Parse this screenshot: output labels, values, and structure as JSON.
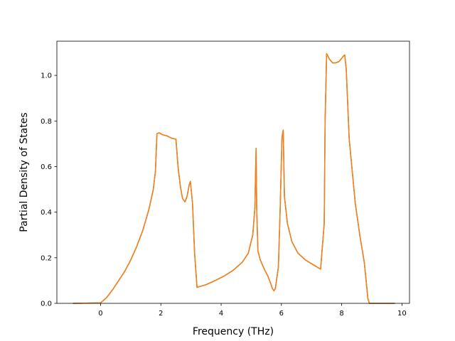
{
  "chart_data": {
    "type": "line",
    "title": "",
    "xlabel": "Frequency (THz)",
    "ylabel": "Partial Density of States",
    "xlim": [
      -1.45,
      10.25
    ],
    "ylim": [
      0.0,
      1.15
    ],
    "grid": false,
    "legend": "none",
    "x_ticks": [
      0,
      2,
      4,
      6,
      8,
      10
    ],
    "y_ticks": [
      0.0,
      0.2,
      0.4,
      0.6,
      0.8,
      1.0
    ],
    "x_tick_labels": [
      "0",
      "2",
      "4",
      "6",
      "8",
      "10"
    ],
    "y_tick_labels": [
      "0.0",
      "0.2",
      "0.4",
      "0.6",
      "0.8",
      "1.0"
    ],
    "series": [
      {
        "color": "#1f77b4",
        "x": [
          -0.9,
          0.0,
          0.2,
          0.4,
          0.6,
          0.8,
          1.0,
          1.2,
          1.4,
          1.6,
          1.75,
          1.82,
          1.87,
          1.95,
          2.05,
          2.2,
          2.35,
          2.5,
          2.57,
          2.65,
          2.72,
          2.8,
          2.87,
          2.94,
          2.98,
          3.05,
          3.12,
          3.2,
          3.5,
          3.8,
          4.1,
          4.4,
          4.7,
          4.9,
          5.05,
          5.12,
          5.16,
          5.18,
          5.22,
          5.3,
          5.45,
          5.55,
          5.65,
          5.7,
          5.75,
          5.8,
          5.9,
          5.96,
          6.02,
          6.06,
          6.1,
          6.2,
          6.35,
          6.55,
          6.8,
          7.05,
          7.3,
          7.42,
          7.45,
          7.5,
          7.6,
          7.7,
          7.8,
          7.9,
          8.0,
          8.06,
          8.1,
          8.15,
          8.25,
          8.45,
          8.6,
          8.75,
          8.87,
          8.92,
          9.3,
          9.75
        ],
        "y": [
          0.0,
          0.002,
          0.025,
          0.06,
          0.1,
          0.14,
          0.19,
          0.25,
          0.32,
          0.41,
          0.5,
          0.58,
          0.745,
          0.748,
          0.74,
          0.735,
          0.725,
          0.72,
          0.6,
          0.51,
          0.46,
          0.445,
          0.47,
          0.52,
          0.535,
          0.44,
          0.22,
          0.07,
          0.082,
          0.1,
          0.12,
          0.145,
          0.18,
          0.22,
          0.3,
          0.42,
          0.68,
          0.42,
          0.23,
          0.19,
          0.145,
          0.12,
          0.085,
          0.065,
          0.055,
          0.065,
          0.16,
          0.42,
          0.73,
          0.76,
          0.47,
          0.35,
          0.27,
          0.22,
          0.19,
          0.17,
          0.15,
          0.35,
          0.8,
          1.095,
          1.07,
          1.055,
          1.055,
          1.06,
          1.075,
          1.085,
          1.09,
          1.03,
          0.72,
          0.44,
          0.3,
          0.18,
          0.02,
          0.0,
          0.0,
          0.0
        ]
      },
      {
        "color": "#ff7f0e",
        "x": [
          -0.9,
          0.0,
          0.2,
          0.4,
          0.6,
          0.8,
          1.0,
          1.2,
          1.4,
          1.6,
          1.75,
          1.82,
          1.87,
          1.95,
          2.05,
          2.2,
          2.35,
          2.5,
          2.57,
          2.65,
          2.72,
          2.8,
          2.87,
          2.94,
          2.98,
          3.05,
          3.12,
          3.2,
          3.5,
          3.8,
          4.1,
          4.4,
          4.7,
          4.9,
          5.05,
          5.12,
          5.16,
          5.18,
          5.22,
          5.3,
          5.45,
          5.55,
          5.65,
          5.7,
          5.75,
          5.8,
          5.9,
          5.96,
          6.02,
          6.06,
          6.1,
          6.2,
          6.35,
          6.55,
          6.8,
          7.05,
          7.3,
          7.42,
          7.45,
          7.5,
          7.6,
          7.7,
          7.8,
          7.9,
          8.0,
          8.06,
          8.1,
          8.15,
          8.25,
          8.45,
          8.6,
          8.75,
          8.87,
          8.92,
          9.3,
          9.75
        ],
        "y": [
          0.0,
          0.002,
          0.025,
          0.06,
          0.1,
          0.14,
          0.19,
          0.25,
          0.32,
          0.41,
          0.5,
          0.58,
          0.745,
          0.748,
          0.74,
          0.735,
          0.725,
          0.72,
          0.6,
          0.51,
          0.46,
          0.445,
          0.47,
          0.52,
          0.535,
          0.44,
          0.22,
          0.07,
          0.082,
          0.1,
          0.12,
          0.145,
          0.18,
          0.22,
          0.3,
          0.42,
          0.68,
          0.42,
          0.23,
          0.19,
          0.145,
          0.12,
          0.085,
          0.065,
          0.055,
          0.065,
          0.16,
          0.42,
          0.73,
          0.76,
          0.47,
          0.35,
          0.27,
          0.22,
          0.19,
          0.17,
          0.15,
          0.35,
          0.8,
          1.095,
          1.07,
          1.055,
          1.055,
          1.06,
          1.075,
          1.085,
          1.09,
          1.03,
          0.72,
          0.44,
          0.3,
          0.18,
          0.02,
          0.0,
          0.0,
          0.0
        ]
      }
    ]
  }
}
